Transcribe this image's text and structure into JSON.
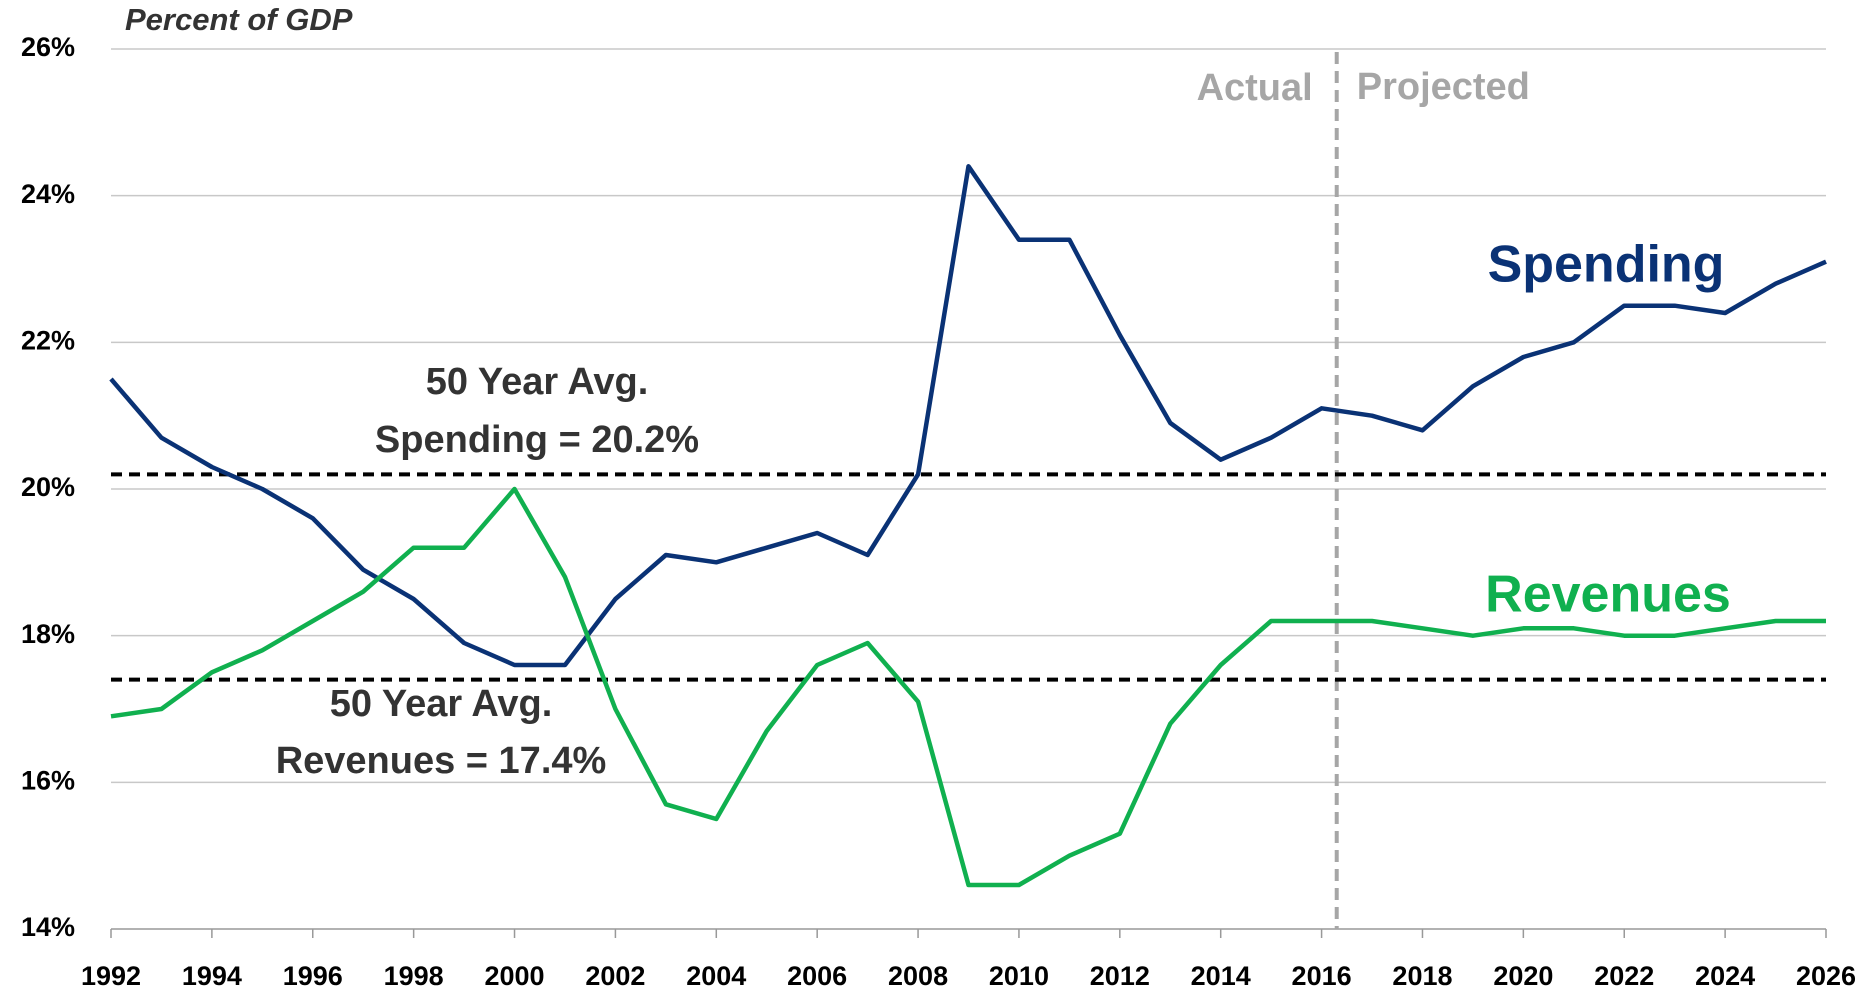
{
  "chart_data": {
    "type": "line",
    "y_axis_label": "Percent of GDP",
    "x": [
      1992,
      1993,
      1994,
      1995,
      1996,
      1997,
      1998,
      1999,
      2000,
      2001,
      2002,
      2003,
      2004,
      2005,
      2006,
      2007,
      2008,
      2009,
      2010,
      2011,
      2012,
      2013,
      2014,
      2015,
      2016,
      2017,
      2018,
      2019,
      2020,
      2021,
      2022,
      2023,
      2024,
      2025,
      2026
    ],
    "series": [
      {
        "name": "Spending",
        "color": "#0a3275",
        "values": [
          21.5,
          20.7,
          20.3,
          20.0,
          19.6,
          18.9,
          18.5,
          17.9,
          17.6,
          17.6,
          18.5,
          19.1,
          19.0,
          19.2,
          19.4,
          19.1,
          20.2,
          24.4,
          23.4,
          23.4,
          22.1,
          20.9,
          20.4,
          20.7,
          21.1,
          21.0,
          20.8,
          21.4,
          21.8,
          22.0,
          22.5,
          22.5,
          22.4,
          22.8,
          23.1
        ]
      },
      {
        "name": "Revenues",
        "color": "#10b04f",
        "values": [
          16.9,
          17.0,
          17.5,
          17.8,
          18.2,
          18.6,
          19.2,
          19.2,
          20.0,
          18.8,
          17.0,
          15.7,
          15.5,
          16.7,
          17.6,
          17.9,
          17.1,
          14.6,
          14.6,
          15.0,
          15.3,
          16.8,
          17.6,
          18.2,
          18.2,
          18.2,
          18.1,
          18.0,
          18.1,
          18.1,
          18.0,
          18.0,
          18.1,
          18.2,
          18.2
        ]
      }
    ],
    "reference_lines": [
      {
        "value": 20.2,
        "label": [
          "50 Year Avg.",
          "Spending = 20.2%"
        ]
      },
      {
        "value": 17.4,
        "label": [
          "50 Year Avg.",
          "Revenues = 17.4%"
        ]
      }
    ],
    "divider": {
      "x": 2016.3,
      "left_label": "Actual",
      "right_label": "Projected"
    },
    "xlim": [
      1992,
      2026
    ],
    "xticks": [
      1992,
      1994,
      1996,
      1998,
      2000,
      2002,
      2004,
      2006,
      2008,
      2010,
      2012,
      2014,
      2016,
      2018,
      2020,
      2022,
      2024,
      2026
    ],
    "ylim": [
      14,
      26
    ],
    "yticks": [
      {
        "value": 14,
        "label": "14%"
      },
      {
        "value": 16,
        "label": "16%"
      },
      {
        "value": 18,
        "label": "18%"
      },
      {
        "value": 20,
        "label": "20%"
      },
      {
        "value": 22,
        "label": "22%"
      },
      {
        "value": 24,
        "label": "24%"
      },
      {
        "value": 26,
        "label": "26%"
      }
    ],
    "grid": true
  }
}
